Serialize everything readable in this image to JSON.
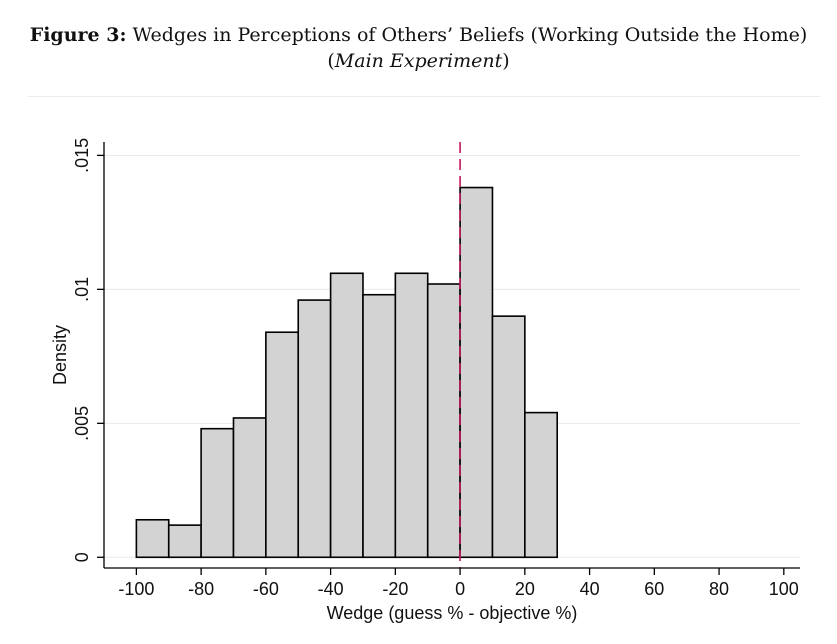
{
  "figure": {
    "label": "Figure 3:",
    "title": "Wedges in Perceptions of Others’ Beliefs (Working Outside the Home)",
    "subtitle_open": "(",
    "subtitle": "Main Experiment",
    "subtitle_close": ")"
  },
  "chart_data": {
    "type": "bar",
    "subtype": "histogram",
    "xlabel": "Wedge (guess % - objective %)",
    "ylabel": "Density",
    "xlim": [
      -110,
      105
    ],
    "ylim": [
      -0.0004,
      0.0155
    ],
    "x_ticks": [
      -100,
      -80,
      -60,
      -40,
      -20,
      0,
      20,
      40,
      60,
      80,
      100
    ],
    "x_tick_labels": [
      "-100",
      "-80",
      "-60",
      "-40",
      "-20",
      "0",
      "20",
      "40",
      "60",
      "80",
      "100"
    ],
    "y_ticks": [
      0,
      0.005,
      0.01,
      0.015
    ],
    "y_tick_labels": [
      "0",
      ".005",
      ".01",
      ".015"
    ],
    "bin_width": 10,
    "bins": [
      {
        "start": -100,
        "end": -90,
        "density": 0.0014
      },
      {
        "start": -90,
        "end": -80,
        "density": 0.0012
      },
      {
        "start": -80,
        "end": -70,
        "density": 0.0048
      },
      {
        "start": -70,
        "end": -60,
        "density": 0.0052
      },
      {
        "start": -60,
        "end": -50,
        "density": 0.0084
      },
      {
        "start": -50,
        "end": -40,
        "density": 0.0096
      },
      {
        "start": -40,
        "end": -30,
        "density": 0.0106
      },
      {
        "start": -30,
        "end": -20,
        "density": 0.0098
      },
      {
        "start": -20,
        "end": -10,
        "density": 0.0106
      },
      {
        "start": -10,
        "end": 0,
        "density": 0.0102
      },
      {
        "start": 0,
        "end": 10,
        "density": 0.0138
      },
      {
        "start": 10,
        "end": 20,
        "density": 0.009
      },
      {
        "start": 20,
        "end": 30,
        "density": 0.0054
      }
    ],
    "reference_line": {
      "x": 0,
      "style": "dashed"
    },
    "grid": true,
    "colors": {
      "bar_fill": "#d3d3d3",
      "bar_stroke": "#000000",
      "reference_line": "#c0185a",
      "grid": "#eaeaea"
    }
  }
}
